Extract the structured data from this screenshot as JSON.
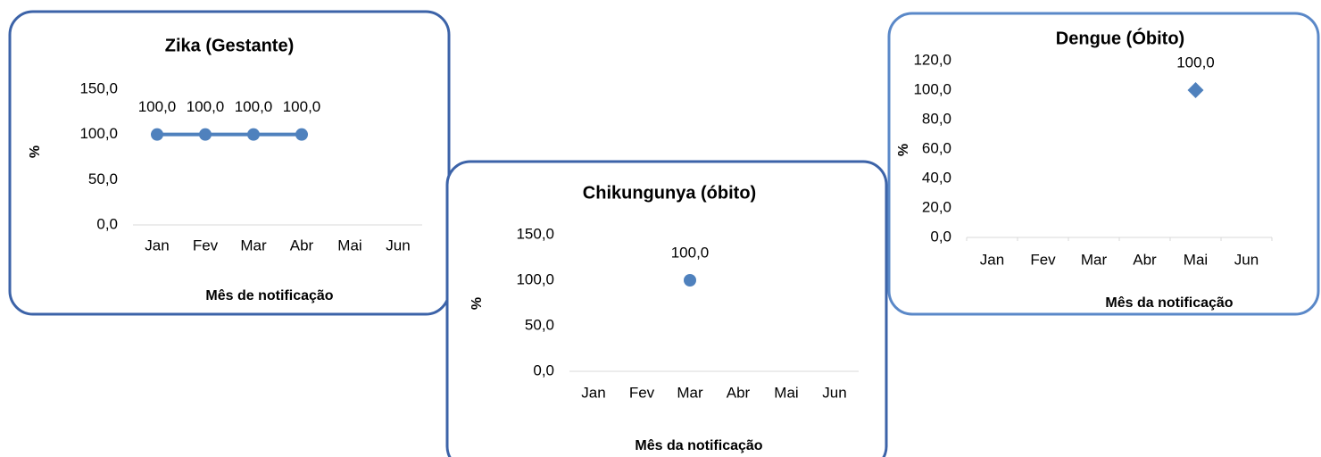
{
  "chart_data": [
    {
      "type": "line",
      "title": "Zika (Gestante)",
      "ylabel": "%",
      "xlabel": "Mês de notificação",
      "categories": [
        "Jan",
        "Fev",
        "Mar",
        "Abr",
        "Mai",
        "Jun"
      ],
      "values": [
        100,
        100,
        100,
        100,
        null,
        null
      ],
      "value_labels": [
        "100,0",
        "100,0",
        "100,0",
        "100,0",
        null,
        null
      ],
      "color": "#4f81bd",
      "marker": "circle",
      "ylim": [
        0,
        150
      ],
      "yticks": [
        {
          "value": 0,
          "label": "0,0"
        },
        {
          "value": 50,
          "label": "50,0"
        },
        {
          "value": 100,
          "label": "100,0"
        },
        {
          "value": 150,
          "label": "150,0"
        }
      ]
    },
    {
      "type": "line",
      "title": "Chikungunya (óbito)",
      "ylabel": "%",
      "xlabel": "Mês da notificação",
      "categories": [
        "Jan",
        "Fev",
        "Mar",
        "Abr",
        "Mai",
        "Jun"
      ],
      "values": [
        null,
        null,
        100,
        null,
        null,
        null
      ],
      "value_labels": [
        null,
        null,
        "100,0",
        null,
        null,
        null
      ],
      "color": "#4f81bd",
      "marker": "circle",
      "ylim": [
        0,
        150
      ],
      "yticks": [
        {
          "value": 0,
          "label": "0,0"
        },
        {
          "value": 50,
          "label": "50,0"
        },
        {
          "value": 100,
          "label": "100,0"
        },
        {
          "value": 150,
          "label": "150,0"
        }
      ]
    },
    {
      "type": "line",
      "title": "Dengue (Óbito)",
      "ylabel": "%",
      "xlabel": "Mês da notificação",
      "categories": [
        "Jan",
        "Fev",
        "Mar",
        "Abr",
        "Mai",
        "Jun"
      ],
      "values": [
        null,
        null,
        null,
        null,
        100,
        null
      ],
      "value_labels": [
        null,
        null,
        null,
        null,
        "100,0",
        null
      ],
      "color": "#4f81bd",
      "marker": "diamond",
      "ylim": [
        0,
        120
      ],
      "yticks": [
        {
          "value": 0,
          "label": "0,0"
        },
        {
          "value": 20,
          "label": "20,0"
        },
        {
          "value": 40,
          "label": "40,0"
        },
        {
          "value": 60,
          "label": "60,0"
        },
        {
          "value": 80,
          "label": "80,0"
        },
        {
          "value": 100,
          "label": "100,0"
        },
        {
          "value": 120,
          "label": "120,0"
        }
      ]
    }
  ]
}
